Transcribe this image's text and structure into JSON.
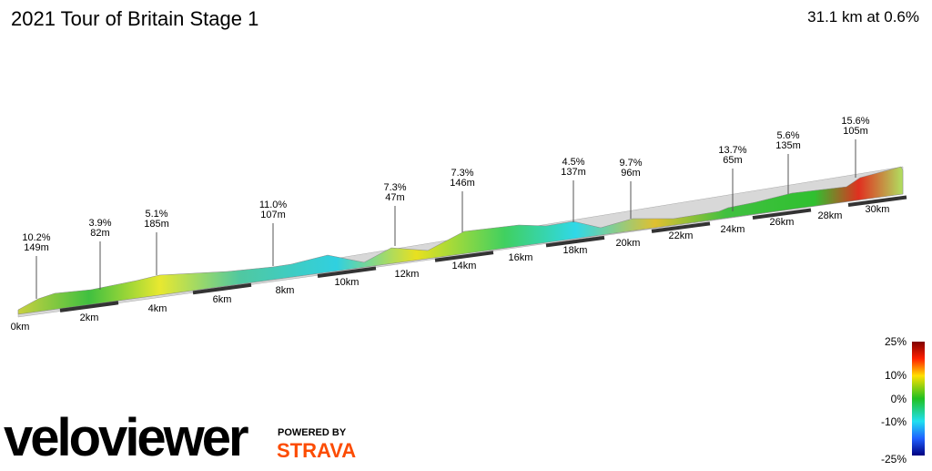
{
  "header": {
    "title": "2021 Tour of Britain Stage 1",
    "summary": "31.1 km at 0.6%"
  },
  "climbs": [
    {
      "gradient": "10.2%",
      "length": "149m"
    },
    {
      "gradient": "3.9%",
      "length": "82m"
    },
    {
      "gradient": "5.1%",
      "length": "185m"
    },
    {
      "gradient": "11.0%",
      "length": "107m"
    },
    {
      "gradient": "7.3%",
      "length": "47m"
    },
    {
      "gradient": "7.3%",
      "length": "146m"
    },
    {
      "gradient": "4.5%",
      "length": "137m"
    },
    {
      "gradient": "9.7%",
      "length": "96m"
    },
    {
      "gradient": "13.7%",
      "length": "65m"
    },
    {
      "gradient": "5.6%",
      "length": "135m"
    },
    {
      "gradient": "15.6%",
      "length": "105m"
    }
  ],
  "distance_labels": [
    "0km",
    "2km",
    "4km",
    "6km",
    "8km",
    "10km",
    "12km",
    "14km",
    "16km",
    "18km",
    "20km",
    "22km",
    "24km",
    "26km",
    "28km",
    "30km"
  ],
  "gradient_scale": [
    "25%",
    "10%",
    "0%",
    "-10%",
    "-25%"
  ],
  "branding": {
    "logo": "veloviewer",
    "powered_by": "POWERED BY",
    "partner": "STRAVA"
  }
}
